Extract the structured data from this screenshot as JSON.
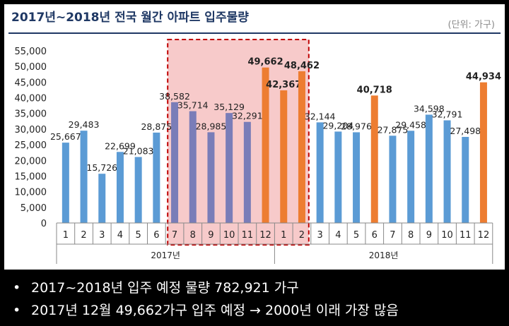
{
  "header": {
    "title": "2017년~2018년 전국 월간 아파트 입주물량",
    "unit": "(단위: 가구)"
  },
  "colors": {
    "blue": "#5b9bd5",
    "purple": "#7a7db8",
    "orange": "#ed7d31",
    "highlight_fill": "#f4b8b8",
    "highlight_border": "#c00000"
  },
  "chart_data": {
    "type": "bar",
    "title": "2017년~2018년 전국 월간 아파트 입주물량",
    "ylim": [
      0,
      55000
    ],
    "yticks": [
      "0",
      "5,000",
      "10,000",
      "15,000",
      "20,000",
      "25,000",
      "30,000",
      "35,000",
      "40,000",
      "45,000",
      "50,000",
      "55,000"
    ],
    "groups": [
      {
        "label": "2017년",
        "months": [
          "1",
          "2",
          "3",
          "4",
          "5",
          "6",
          "7",
          "8",
          "9",
          "10",
          "11",
          "12"
        ]
      },
      {
        "label": "2018년",
        "months": [
          "1",
          "2",
          "3",
          "4",
          "5",
          "6",
          "7",
          "8",
          "9",
          "10",
          "11",
          "12"
        ]
      }
    ],
    "values": [
      25667,
      29483,
      15726,
      22699,
      21083,
      28875,
      38582,
      35714,
      28985,
      35129,
      32291,
      49662,
      42367,
      48462,
      32144,
      29204,
      28976,
      40718,
      27875,
      29458,
      34598,
      32791,
      27498,
      44934
    ],
    "labels": [
      "25,667",
      "29,483",
      "15,726",
      "22,699",
      "21,083",
      "28,875",
      "38,582",
      "35,714",
      "28,985",
      "35,129",
      "32,291",
      "49,662",
      "42,367",
      "48,462",
      "32,144",
      "29,204",
      "28,976",
      "40,718",
      "27,875",
      "29,458",
      "34,598",
      "32,791",
      "27,498",
      "44,934"
    ],
    "bar_colors": [
      "blue",
      "blue",
      "blue",
      "blue",
      "blue",
      "blue",
      "purple",
      "purple",
      "purple",
      "purple",
      "purple",
      "orange",
      "orange",
      "orange",
      "blue",
      "blue",
      "blue",
      "orange",
      "blue",
      "blue",
      "blue",
      "blue",
      "blue",
      "orange"
    ],
    "bold_labels": [
      11,
      12,
      13,
      17,
      23
    ],
    "highlight_range": [
      6,
      13
    ],
    "grid": false
  },
  "bullets": [
    "2017~2018년 입주 예정 물량 782,921 가구",
    "2017년 12월 49,662가구 입주 예정 → 2000년 이래 가장 많음"
  ]
}
